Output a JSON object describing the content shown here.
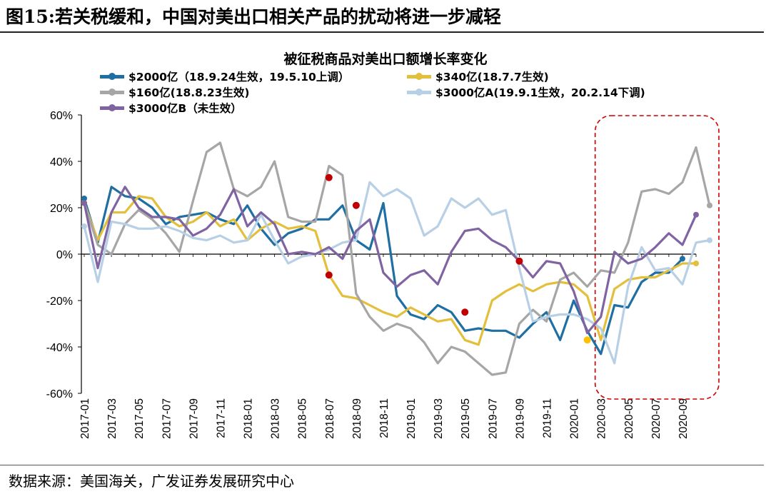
{
  "header": {
    "figure_label": "图15:",
    "title": "若关税缓和，中国对美出口相关产品的扰动将进一步减轻"
  },
  "source": "数据来源：美国海关，广发证券发展研究中心",
  "chart_data": {
    "type": "line",
    "title": "被征税商品对美出口额增长率变化",
    "ylim": [
      -60,
      60
    ],
    "yticks": [
      -60,
      -40,
      -20,
      0,
      20,
      40,
      60
    ],
    "ytick_labels": [
      "-60%",
      "-40%",
      "-20%",
      "0%",
      "20%",
      "40%",
      "60%"
    ],
    "xtick_labels": [
      "2017-01",
      "2017-03",
      "2017-05",
      "2017-07",
      "2017-09",
      "2017-11",
      "2018-01",
      "2018-03",
      "2018-05",
      "2018-07",
      "2018-09",
      "2018-11",
      "2019-01",
      "2019-03",
      "2019-05",
      "2019-07",
      "2019-09",
      "2019-11",
      "2020-01",
      "2020-03",
      "2020-05",
      "2020-07",
      "2020-09"
    ],
    "x_start": "2017-01",
    "x_end": "2020-10",
    "grid": false,
    "legend_position": "top",
    "highlight_box": {
      "x_from": "2020-03",
      "x_to": "2020-10",
      "color": "#cc0000",
      "style": "dashed"
    },
    "series": [
      {
        "name": "$2000亿（18.9.24生效，19.5.10上调）",
        "color": "#1f6fa3",
        "values": [
          24,
          5,
          29,
          25,
          24,
          20,
          13,
          16,
          17,
          18,
          15,
          13,
          21,
          11,
          4,
          9,
          11,
          15,
          15,
          21,
          6,
          2,
          22,
          -18,
          -26,
          -28,
          -22,
          -25,
          -33,
          -32,
          -33,
          -33,
          -36,
          -30,
          -25,
          -37,
          -20,
          -33,
          -43,
          -22,
          -23,
          -12,
          -8,
          -8,
          -2
        ]
      },
      {
        "name": "$340亿(18.7.7生效)",
        "color": "#e3bf3c",
        "values": [
          22,
          6,
          18,
          18,
          25,
          24,
          16,
          12,
          14,
          18,
          12,
          15,
          6,
          11,
          14,
          11,
          12,
          10,
          -9,
          -18,
          -19,
          -22,
          -25,
          -27,
          -23,
          -26,
          -29,
          -28,
          -37,
          -39,
          -20,
          -16,
          -13,
          -16,
          -13,
          -12,
          -13,
          -18,
          -37,
          -15,
          -11,
          -10,
          -10,
          -7,
          -4,
          -4
        ]
      },
      {
        "name": "$160亿(18.8.23生效)",
        "color": "#a6a6a6",
        "values": [
          22,
          4,
          0,
          13,
          19,
          15,
          9,
          1,
          23,
          44,
          48,
          28,
          25,
          29,
          40,
          16,
          14,
          14,
          38,
          34,
          -17,
          -27,
          -33,
          -30,
          -32,
          -38,
          -47,
          -40,
          -42,
          -47,
          -52,
          -51,
          -30,
          -24,
          -29,
          -11,
          -8,
          -14,
          -7,
          -8,
          5,
          27,
          28,
          26,
          31,
          46,
          21
        ]
      },
      {
        "name": "$3000亿A(19.9.1生效，20.2.14下调)",
        "color": "#b8d0e6",
        "values": [
          12,
          -12,
          14,
          13,
          11,
          11,
          12,
          10,
          7,
          6,
          8,
          5,
          6,
          17,
          6,
          -4,
          -1,
          0,
          2,
          5,
          6,
          31,
          25,
          28,
          24,
          8,
          12,
          24,
          20,
          24,
          17,
          19,
          -6,
          -29,
          -27,
          -26,
          -26,
          -28,
          -32,
          -47,
          -14,
          3,
          -7,
          -6,
          -13,
          5,
          6
        ]
      },
      {
        "name": "$3000亿B（未生效）",
        "color": "#8064a2",
        "values": [
          22,
          -6,
          18,
          29,
          20,
          16,
          16,
          15,
          8,
          11,
          17,
          28,
          12,
          18,
          13,
          0,
          1,
          0,
          3,
          -2,
          10,
          15,
          -8,
          -14,
          -9,
          -7,
          -13,
          1,
          10,
          11,
          6,
          3,
          -3,
          -10,
          -3,
          -4,
          -16,
          -34,
          -27,
          1,
          -4,
          -2,
          3,
          9,
          4,
          17
        ]
      }
    ],
    "markers": [
      {
        "x": "2018-07",
        "y": 33,
        "color": "#c00000"
      },
      {
        "x": "2018-09",
        "y": 21,
        "color": "#c00000"
      },
      {
        "x": "2018-07",
        "y": -9,
        "color": "#c00000"
      },
      {
        "x": "2019-05",
        "y": -25,
        "color": "#c00000"
      },
      {
        "x": "2019-09",
        "y": -3,
        "color": "#c00000"
      },
      {
        "x": "2020-02",
        "y": -37,
        "color": "#ffc000"
      }
    ]
  }
}
